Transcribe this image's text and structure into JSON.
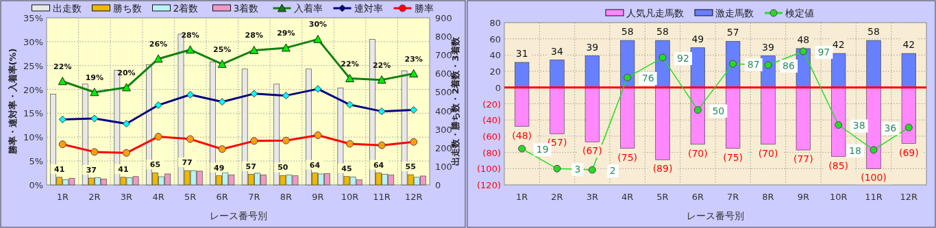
{
  "chart_data": [
    {
      "type": "bar",
      "categories": [
        "1R",
        "2R",
        "3R",
        "4R",
        "5R",
        "6R",
        "7R",
        "8R",
        "9R",
        "10R",
        "11R",
        "12R"
      ],
      "series": [
        {
          "name": "出走数",
          "axis": "y2",
          "color": "#e8e8e8",
          "values": [
            488,
            543,
            618,
            647,
            812,
            663,
            624,
            543,
            624,
            522,
            784,
            615
          ]
        },
        {
          "name": "勝ち数",
          "axis": "y2",
          "color": "#f0b800",
          "values": [
            41,
            37,
            41,
            65,
            77,
            49,
            57,
            50,
            64,
            45,
            64,
            55
          ],
          "value_labels": [
            "41",
            "37",
            "41",
            "65",
            "77",
            "49",
            "57",
            "50",
            "64",
            "45",
            "64",
            "55"
          ]
        },
        {
          "name": "2着数",
          "axis": "y2",
          "color": "#b8f4f4",
          "values": [
            28,
            39,
            39,
            44,
            77,
            66,
            63,
            53,
            59,
            43,
            58,
            41
          ]
        },
        {
          "name": "3着数",
          "axis": "y2",
          "color": "#f098c8",
          "values": [
            36,
            32,
            45,
            59,
            74,
            53,
            54,
            49,
            61,
            27,
            53,
            48
          ]
        },
        {
          "name": "入着率",
          "type": "line",
          "marker": "triangle",
          "color": "#108010",
          "values": [
            21.7,
            19.4,
            20.4,
            26.4,
            28.3,
            25.3,
            28.2,
            28.7,
            30.5,
            22.3,
            22.0,
            23.3
          ],
          "value_labels": [
            "22%",
            "19%",
            "20%",
            "26%",
            "28%",
            "25%",
            "28%",
            "29%",
            "30%",
            "22%",
            "22%",
            "23%"
          ]
        },
        {
          "name": "連対率",
          "type": "line",
          "marker": "diamond",
          "color": "#000080",
          "values": [
            13.7,
            13.9,
            12.8,
            16.7,
            18.9,
            17.4,
            19.1,
            18.7,
            20.1,
            16.8,
            15.4,
            15.7
          ]
        },
        {
          "name": "勝率",
          "type": "line",
          "marker": "circle",
          "color": "#ff0000",
          "values": [
            8.5,
            6.9,
            6.7,
            10.1,
            9.6,
            7.5,
            9.2,
            9.3,
            10.4,
            8.6,
            8.3,
            9.0
          ]
        }
      ],
      "xlabel": "レース番号別",
      "ylabel": "勝率・連対率・入着率(%)",
      "y2label": "出走数・勝ち数・2着数・3着数",
      "ylim": [
        0,
        35
      ],
      "yticks": [
        {
          "value": 0,
          "label": "0%"
        },
        {
          "value": 5,
          "label": "5%"
        },
        {
          "value": 10,
          "label": "10%"
        },
        {
          "value": 15,
          "label": "15%"
        },
        {
          "value": 20,
          "label": "20%"
        },
        {
          "value": 25,
          "label": "25%"
        },
        {
          "value": 30,
          "label": "30%"
        },
        {
          "value": 35,
          "label": "35%"
        }
      ],
      "y2lim": [
        0,
        900
      ],
      "y2ticks": [
        0,
        100,
        200,
        300,
        400,
        500,
        600,
        700,
        800,
        900
      ],
      "grid": true,
      "legend": "top"
    },
    {
      "type": "bar",
      "stacked": true,
      "categories": [
        "1R",
        "2R",
        "3R",
        "4R",
        "5R",
        "6R",
        "7R",
        "8R",
        "9R",
        "10R",
        "11R",
        "12R"
      ],
      "series": [
        {
          "name": "人気凡走馬数",
          "color": "#ff88ff",
          "values": [
            -48,
            -57,
            -67,
            -75,
            -89,
            -70,
            -75,
            -70,
            -77,
            -85,
            -100,
            -69
          ],
          "value_labels": [
            "(48)",
            "(57)",
            "(67)",
            "(75)",
            "(89)",
            "(70)",
            "(75)",
            "(70)",
            "(77)",
            "(85)",
            "(100)",
            "(69)"
          ]
        },
        {
          "name": "激走馬数",
          "color": "#6680ff",
          "values": [
            31,
            34,
            39,
            58,
            58,
            49,
            57,
            39,
            48,
            42,
            58,
            42
          ],
          "value_labels": [
            "31",
            "34",
            "39",
            "58",
            "58",
            "49",
            "57",
            "39",
            "48",
            "42",
            "58",
            "42"
          ]
        },
        {
          "name": "検定値",
          "type": "line",
          "axis": "y2",
          "marker": "circle",
          "color": "#22dd22",
          "values": [
            19,
            3,
            2,
            76,
            92,
            50,
            87,
            86,
            97,
            38,
            18,
            36
          ],
          "value_labels": [
            "19",
            "3",
            "2",
            "76",
            "92",
            "50",
            "87",
            "86",
            "97",
            "38",
            "18",
            "36"
          ]
        }
      ],
      "xlabel": "レース番号別",
      "ylim": [
        -120,
        80
      ],
      "yticks": [
        {
          "value": -120,
          "label": "(120)"
        },
        {
          "value": -100,
          "label": "(100)"
        },
        {
          "value": -80,
          "label": "(80)"
        },
        {
          "value": -60,
          "label": "(60)"
        },
        {
          "value": -40,
          "label": "(40)"
        },
        {
          "value": -20,
          "label": "(20)"
        },
        0,
        20,
        40,
        60,
        80
      ],
      "y2lim": [
        -10,
        120
      ],
      "ref_lines": [
        {
          "axis": "y",
          "value": 0,
          "color": "#ff0000"
        }
      ],
      "grid": true,
      "legend": "top"
    }
  ]
}
